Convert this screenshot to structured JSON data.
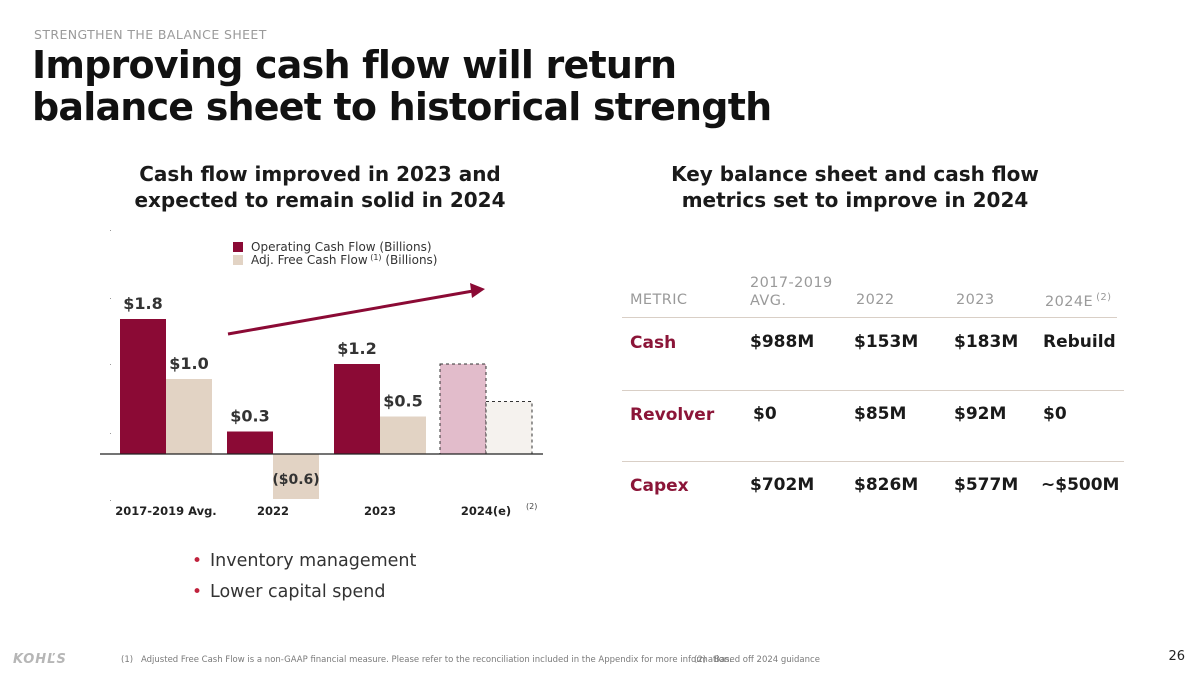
{
  "header": {
    "eyebrow": "STRENGTHEN THE BALANCE SHEET",
    "title_line1": "Improving cash flow will return",
    "title_line2": "balance sheet to historical strength"
  },
  "left": {
    "subhead_line1": "Cash flow improved in 2023 and",
    "subhead_line2": "expected to remain solid in 2024"
  },
  "right": {
    "subhead_line1": "Key balance sheet and cash flow",
    "subhead_line2": "metrics set to improve in 2024"
  },
  "chart_data": {
    "type": "bar",
    "categories": [
      "2017-2019 Avg.",
      "2022",
      "2023",
      "2024(e)"
    ],
    "category_note": {
      "index": 3,
      "text": "(2)"
    },
    "series": [
      {
        "name": "Operating Cash Flow (Billions)",
        "values": [
          1.8,
          0.3,
          1.2,
          null
        ],
        "labels": [
          "$1.8",
          "$0.3",
          "$1.2",
          ""
        ],
        "color": "#8b0a35",
        "estimate_color": "#e2bccb"
      },
      {
        "name": "Adj. Free Cash Flow (1) (Billions)",
        "values": [
          1.0,
          -0.6,
          0.5,
          null
        ],
        "labels": [
          "$1.0",
          "($0.6)",
          "$0.5",
          ""
        ],
        "color": "#e2d3c4",
        "estimate_color": "#f5f2ee"
      }
    ],
    "estimate_heights_relative": [
      1.2,
      0.7
    ],
    "legend": [
      {
        "text": "Operating Cash Flow (Billions)",
        "sup": ""
      },
      {
        "text": "Adj. Free Cash Flow",
        "sup": "(1)",
        "suffix": "(Billions)"
      }
    ],
    "legend_position": "top",
    "ylim": [
      -0.6,
      2.0
    ],
    "trend_arrow": true,
    "grid": false
  },
  "bullets": [
    "Inventory management",
    "Lower capital spend"
  ],
  "metrics": {
    "headers": {
      "metric": "METRIC",
      "avg_line1": "2017-2019",
      "avg_line2": "AVG.",
      "y2022": "2022",
      "y2023": "2023",
      "y2024": "2024E",
      "y2024_sup": "(2)"
    },
    "rows": [
      {
        "label": "Cash",
        "avg": "$988M",
        "y2022": "$153M",
        "y2023": "$183M",
        "y2024": "Rebuild"
      },
      {
        "label": "Revolver",
        "avg": "$0",
        "y2022": "$85M",
        "y2023": "$92M",
        "y2024": "$0"
      },
      {
        "label": "Capex",
        "avg": "$702M",
        "y2022": "$826M",
        "y2023": "$577M",
        "y2024": "~$500M"
      }
    ]
  },
  "footer": {
    "logo": "KOHĽS",
    "fn1_num": "(1)",
    "fn1_text": "Adjusted Free Cash Flow is a non-GAAP financial measure. Please refer to the reconciliation included in the Appendix for more information.",
    "fn2_num": "(2)",
    "fn2_text": "Based off 2024 guidance",
    "page": "26"
  },
  "colors": {
    "brand": "#8b1538",
    "bar_ocf": "#8b0a35",
    "bar_afcf": "#e2d3c4",
    "bullet": "#c0223d"
  }
}
